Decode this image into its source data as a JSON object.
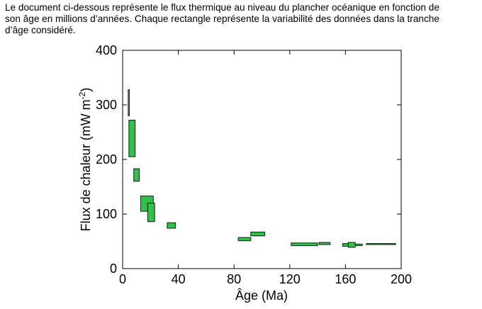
{
  "caption": {
    "lines": [
      "Le document ci-dessous représente le flux thermique au niveau du plancher océanique en fonction de",
      "son âge en millions d’années. Chaque rectangle représente la variabilité des données dans la tranche",
      "d’âge considéré."
    ]
  },
  "chart_data": {
    "type": "box",
    "title": "",
    "xlabel": "Âge (Ma)",
    "ylabel_prefix": "Flux de chaleur (mW m",
    "ylabel_sup": "-2",
    "ylabel_suffix": ")",
    "xlim": [
      0,
      200
    ],
    "ylim": [
      0,
      400
    ],
    "xticks": [
      "0",
      "40",
      "80",
      "120",
      "160",
      "200"
    ],
    "yticks": [
      "0",
      "100",
      "200",
      "300",
      "400"
    ],
    "grid": false,
    "box_color": "#2ec24a",
    "series": [
      {
        "values": [
          {
            "x0": 4,
            "x1": 4.8,
            "y0": 280,
            "y1": 328
          },
          {
            "x0": 4.5,
            "x1": 9,
            "y0": 205,
            "y1": 272
          },
          {
            "x0": 8,
            "x1": 12,
            "y0": 160,
            "y1": 183
          },
          {
            "x0": 13,
            "x1": 22,
            "y0": 105,
            "y1": 133
          },
          {
            "x0": 18,
            "x1": 23,
            "y0": 86,
            "y1": 120
          },
          {
            "x0": 32,
            "x1": 38,
            "y0": 74,
            "y1": 84
          },
          {
            "x0": 83,
            "x1": 92,
            "y0": 51,
            "y1": 57
          },
          {
            "x0": 92,
            "x1": 102,
            "y0": 60,
            "y1": 67
          },
          {
            "x0": 121,
            "x1": 140,
            "y0": 42,
            "y1": 47
          },
          {
            "x0": 141,
            "x1": 149,
            "y0": 44,
            "y1": 48
          },
          {
            "x0": 158,
            "x1": 162,
            "y0": 41,
            "y1": 46
          },
          {
            "x0": 162,
            "x1": 167,
            "y0": 39,
            "y1": 48
          },
          {
            "x0": 167,
            "x1": 172,
            "y0": 42,
            "y1": 45
          },
          {
            "x0": 175,
            "x1": 196,
            "y0": 44,
            "y1": 46
          }
        ]
      }
    ]
  }
}
